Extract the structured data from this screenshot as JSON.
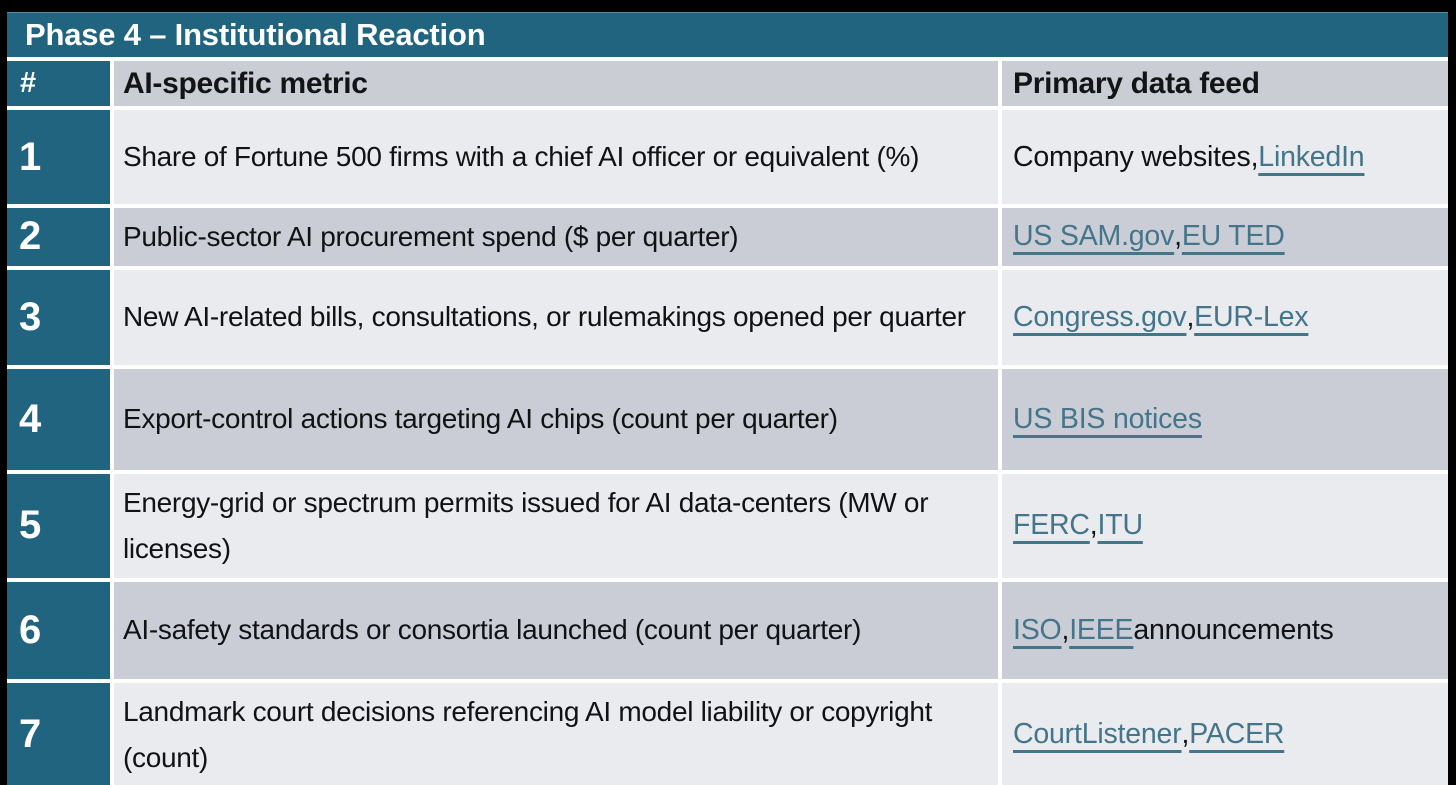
{
  "title": "Phase 4 – Institutional Reaction",
  "colors": {
    "accent_teal": "#20647f",
    "link_teal": "#45758a",
    "row_light": "#e9ebee",
    "row_dark": "#cacdd5",
    "header_gray": "#cacdd4",
    "frame_black": "#000000"
  },
  "table": {
    "headers": {
      "num": "#",
      "metric": "AI-specific metric",
      "feed": "Primary data feed"
    },
    "rows": [
      {
        "num": "1",
        "metric": "Share of Fortune 500 firms with a chief AI officer or equivalent (%)",
        "feed": [
          {
            "text": "Company websites, ",
            "link": false
          },
          {
            "text": "LinkedIn",
            "link": true
          }
        ]
      },
      {
        "num": "2",
        "metric": "Public-sector AI procurement spend ($ per quarter)",
        "feed": [
          {
            "text": "US SAM.gov",
            "link": true
          },
          {
            "text": ", ",
            "link": false
          },
          {
            "text": "EU TED",
            "link": true
          }
        ]
      },
      {
        "num": "3",
        "metric": "New AI-related bills, consultations, or rulemakings opened per quarter",
        "feed": [
          {
            "text": "Congress.gov",
            "link": true
          },
          {
            "text": ", ",
            "link": false
          },
          {
            "text": "EUR-Lex",
            "link": true
          }
        ]
      },
      {
        "num": "4",
        "metric": "Export-control actions targeting AI chips (count per quarter)",
        "feed": [
          {
            "text": "US BIS notices",
            "link": true
          }
        ]
      },
      {
        "num": "5",
        "metric": "Energy-grid or spectrum permits issued for AI data-centers (MW or licenses)",
        "feed": [
          {
            "text": "FERC",
            "link": true
          },
          {
            "text": ", ",
            "link": false
          },
          {
            "text": "ITU",
            "link": true
          }
        ]
      },
      {
        "num": "6",
        "metric": "AI-safety standards or consortia launched (count per quarter)",
        "feed": [
          {
            "text": "ISO",
            "link": true
          },
          {
            "text": ", ",
            "link": false
          },
          {
            "text": "IEEE",
            "link": true
          },
          {
            "text": " announcements",
            "link": false
          }
        ]
      },
      {
        "num": "7",
        "metric": "Landmark court decisions referencing AI model liability or copyright (count)",
        "feed": [
          {
            "text": "CourtListener",
            "link": true
          },
          {
            "text": ", ",
            "link": false
          },
          {
            "text": "PACER",
            "link": true
          }
        ]
      }
    ]
  }
}
